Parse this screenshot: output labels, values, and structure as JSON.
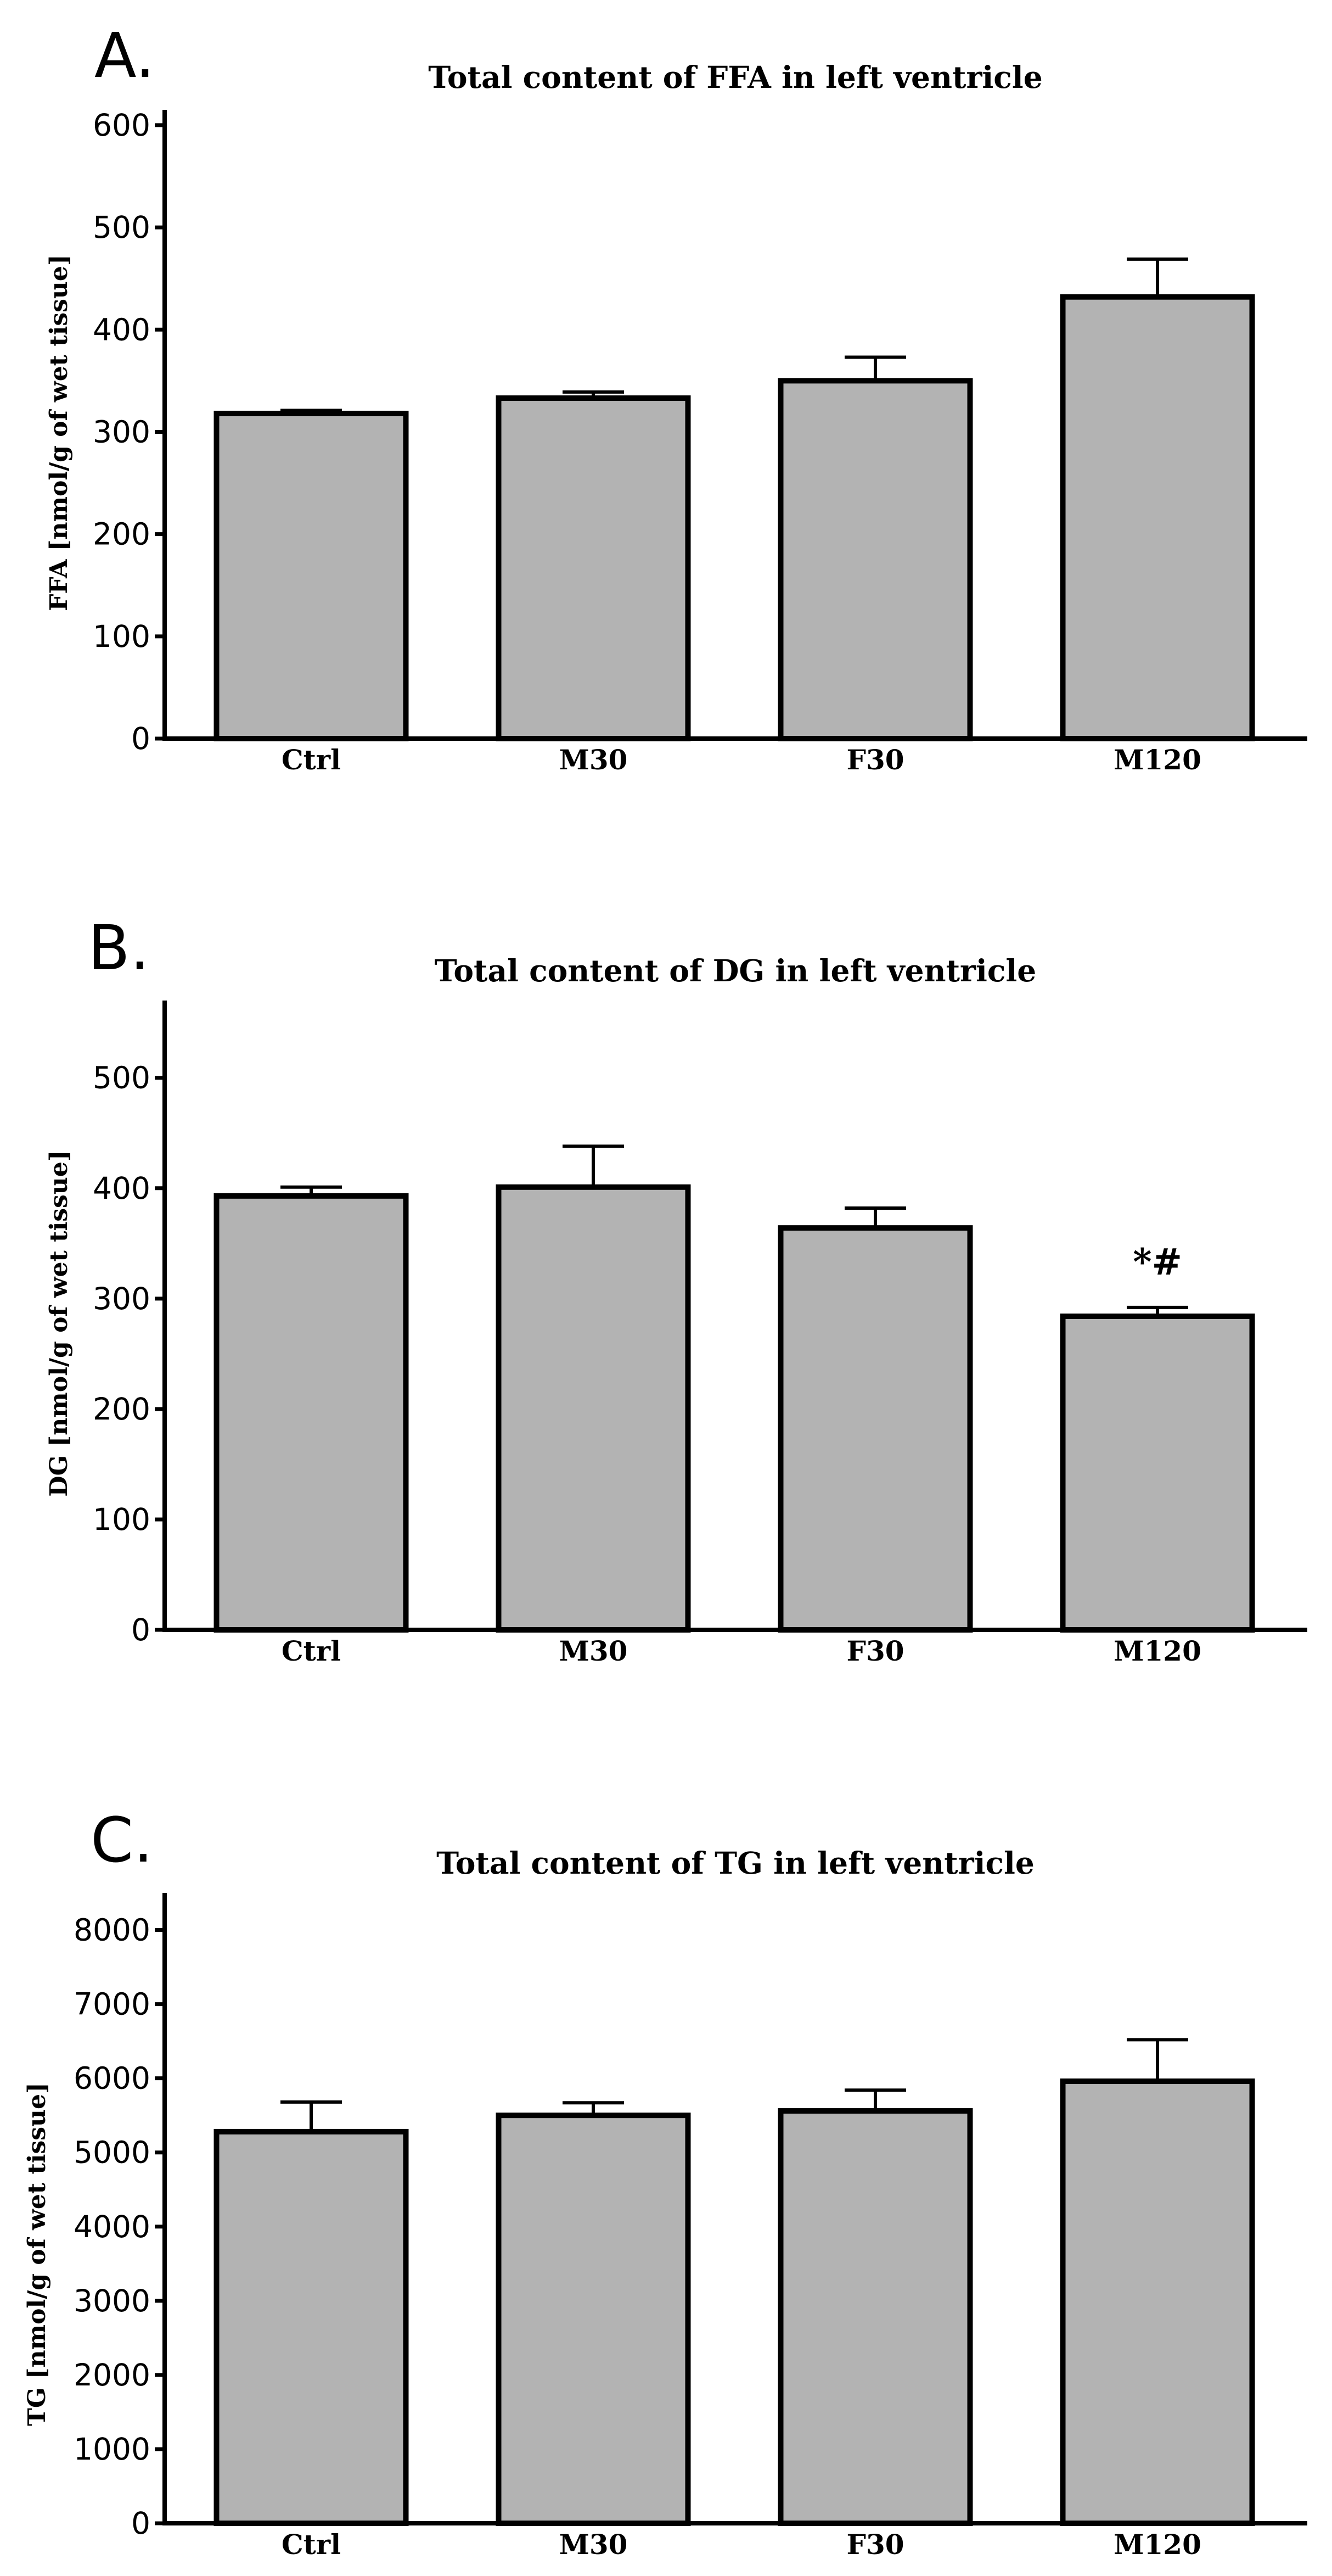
{
  "chart_data": [
    {
      "type": "bar",
      "panel": "A.",
      "title": "Total content of FFA in left ventricle",
      "xlabel": "",
      "ylabel": "FFA [nmol/g of wet tissue]",
      "ylim": [
        0,
        615
      ],
      "yticks": [
        0,
        100,
        200,
        300,
        400,
        500,
        600
      ],
      "categories": [
        "Ctrl",
        "M30",
        "F30",
        "M120"
      ],
      "values": [
        318,
        333,
        350,
        432
      ],
      "errors": [
        3,
        6,
        23,
        37
      ],
      "annotations": [],
      "grid": false,
      "bar_color": "#b3b3b3"
    },
    {
      "type": "bar",
      "panel": "B.",
      "title": "Total content of DG in left ventricle",
      "xlabel": "",
      "ylabel": "DG [nmol/g of wet tissue]",
      "ylim": [
        0,
        570
      ],
      "yticks": [
        0,
        100,
        200,
        300,
        400,
        500
      ],
      "categories": [
        "Ctrl",
        "M30",
        "F30",
        "M120"
      ],
      "values": [
        393,
        401,
        364,
        284
      ],
      "errors": [
        8,
        37,
        18,
        8
      ],
      "annotations": [
        {
          "category": "M120",
          "text": "*#"
        }
      ],
      "grid": false,
      "bar_color": "#b3b3b3"
    },
    {
      "type": "bar",
      "panel": "C.",
      "title": "Total content of TG in left ventricle",
      "xlabel": "",
      "ylabel": "TG [nmol/g of wet tissue]",
      "ylim": [
        0,
        8500
      ],
      "yticks": [
        0,
        1000,
        2000,
        3000,
        4000,
        5000,
        6000,
        7000,
        8000
      ],
      "categories": [
        "Ctrl",
        "M30",
        "F30",
        "M120"
      ],
      "values": [
        5280,
        5500,
        5560,
        5960
      ],
      "errors": [
        400,
        170,
        280,
        560
      ],
      "annotations": [],
      "grid": false,
      "bar_color": "#b3b3b3"
    }
  ]
}
